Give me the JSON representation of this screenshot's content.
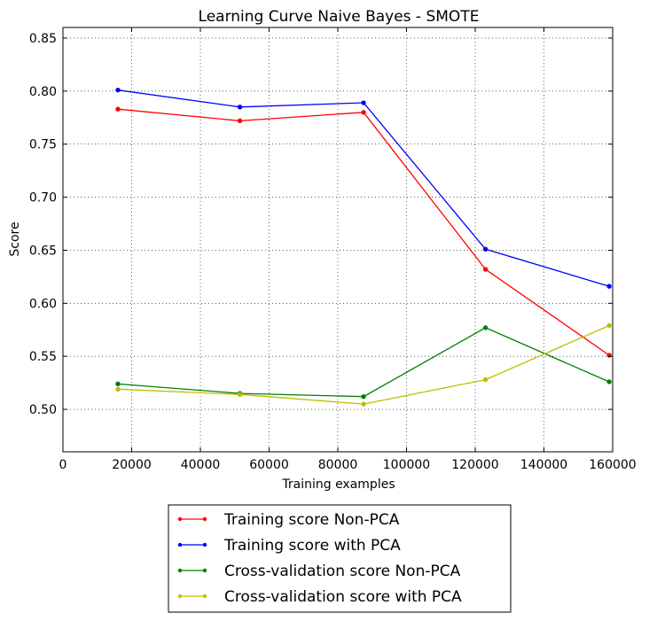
{
  "chart_data": {
    "type": "line",
    "title": "Learning Curve Naive Bayes - SMOTE",
    "xlabel": "Training examples",
    "ylabel": "Score",
    "xlim": [
      0,
      160000
    ],
    "ylim": [
      0.46,
      0.86
    ],
    "xticks": [
      0,
      20000,
      40000,
      60000,
      80000,
      100000,
      120000,
      140000,
      160000
    ],
    "xtick_labels": [
      "0",
      "20000",
      "40000",
      "60000",
      "80000",
      "100000",
      "120000",
      "140000",
      "160000"
    ],
    "yticks": [
      0.5,
      0.55,
      0.6,
      0.65,
      0.7,
      0.75,
      0.8,
      0.85
    ],
    "ytick_labels": [
      "0.50",
      "0.55",
      "0.60",
      "0.65",
      "0.70",
      "0.75",
      "0.80",
      "0.85"
    ],
    "grid": true,
    "legend_position": "below",
    "x": [
      16000,
      51500,
      87500,
      123000,
      159000
    ],
    "series": [
      {
        "name": "Training score Non-PCA",
        "color": "#ff0000",
        "values": [
          0.783,
          0.772,
          0.78,
          0.632,
          0.551
        ]
      },
      {
        "name": "Training score with PCA",
        "color": "#0000ff",
        "values": [
          0.801,
          0.785,
          0.789,
          0.651,
          0.616
        ]
      },
      {
        "name": "Cross-validation score Non-PCA",
        "color": "#008000",
        "values": [
          0.524,
          0.515,
          0.512,
          0.577,
          0.526
        ]
      },
      {
        "name": "Cross-validation score with PCA",
        "color": "#bfbf00",
        "values": [
          0.519,
          0.514,
          0.505,
          0.528,
          0.579
        ]
      }
    ]
  }
}
